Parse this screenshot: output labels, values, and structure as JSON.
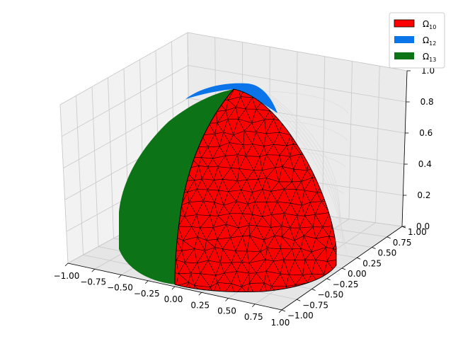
{
  "chart_data": {
    "type": "surface3d",
    "title": "",
    "xlabel": "",
    "ylabel": "",
    "zlabel": "",
    "x_ticks": [
      "−1.00",
      "−0.75",
      "−0.50",
      "−0.25",
      "0.00",
      "0.25",
      "0.50",
      "0.75",
      "1.00"
    ],
    "y_ticks": [
      "−1.00",
      "−0.75",
      "−0.50",
      "−0.25",
      "0.00",
      "0.25",
      "0.50",
      "0.75",
      "1.00"
    ],
    "z_ticks": [
      "0.0",
      "0.2",
      "0.4",
      "0.6",
      "0.8",
      "1.0"
    ],
    "xlim": [
      -1,
      1
    ],
    "ylim": [
      -1,
      1
    ],
    "zlim": [
      0,
      1
    ],
    "grid": true,
    "legend_position": "top-right",
    "series": [
      {
        "name": "Ω",
        "sub": "10",
        "color": "#ff0000",
        "edge": "#000000",
        "mesh": true
      },
      {
        "name": "Ω",
        "sub": "12",
        "color": "#0a74e8",
        "edge": "",
        "mesh": false
      },
      {
        "name": "Ω",
        "sub": "13",
        "color": "#0d7317",
        "edge": "",
        "mesh": false
      }
    ]
  }
}
